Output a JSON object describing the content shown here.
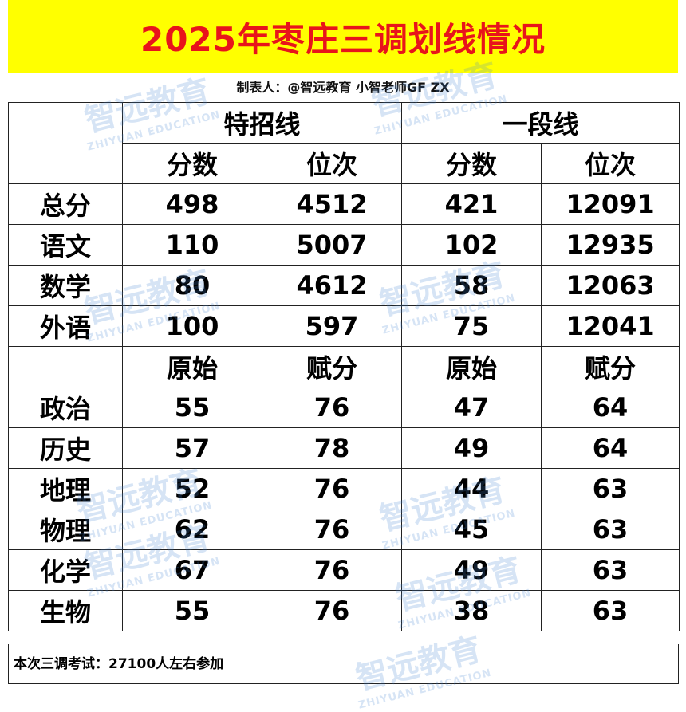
{
  "header": {
    "title": "2025年枣庄三调划线情况",
    "author": "制表人：@智远教育 小智老师GF ZX"
  },
  "table": {
    "groups": [
      "特招线",
      "一段线"
    ],
    "columns": [
      "分数",
      "位次",
      "分数",
      "位次"
    ],
    "rows": [
      {
        "label": "总分",
        "cells": [
          498,
          4512,
          421,
          12091
        ]
      },
      {
        "label": "语文",
        "cells": [
          110,
          5007,
          102,
          12935
        ]
      },
      {
        "label": "数学",
        "cells": [
          80,
          4612,
          58,
          12063
        ]
      },
      {
        "label": "外语",
        "cells": [
          100,
          597,
          75,
          12041
        ]
      }
    ],
    "columns2": [
      "原始",
      "赋分",
      "原始",
      "赋分"
    ],
    "rows2": [
      {
        "label": "政治",
        "cells": [
          55,
          76,
          47,
          64
        ]
      },
      {
        "label": "历史",
        "cells": [
          57,
          78,
          49,
          64
        ]
      },
      {
        "label": "地理",
        "cells": [
          52,
          76,
          44,
          63
        ]
      },
      {
        "label": "物理",
        "cells": [
          62,
          76,
          45,
          63
        ]
      },
      {
        "label": "化学",
        "cells": [
          67,
          76,
          49,
          63
        ]
      },
      {
        "label": "生物",
        "cells": [
          55,
          76,
          38,
          63
        ]
      }
    ]
  },
  "footer": "本次三调考试：27100人左右参加",
  "watermark": {
    "name": "智远教育",
    "sub": "ZHIYUAN EDUCATION"
  }
}
